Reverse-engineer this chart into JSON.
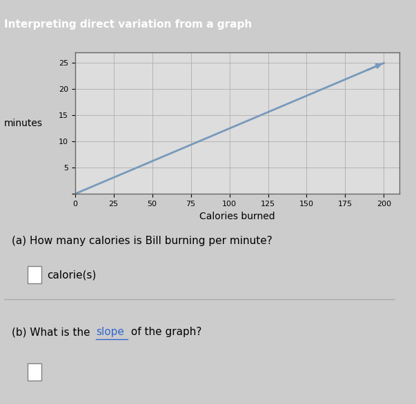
{
  "title": "",
  "xlabel": "Calories burned",
  "ylabel": "minutes",
  "xlim": [
    0,
    210
  ],
  "ylim": [
    0,
    27
  ],
  "xticks": [
    0,
    25,
    50,
    75,
    100,
    125,
    150,
    175,
    200
  ],
  "yticks": [
    0,
    5,
    10,
    15,
    20,
    25
  ],
  "line_x": [
    0,
    200
  ],
  "line_y": [
    0,
    25
  ],
  "line_color": "#7799bb",
  "line_width": 2.0,
  "background_color": "#cccccc",
  "plot_bg_color": "#dddddd",
  "grid_color": "#aaaaaa",
  "question_a": "(a) How many calories is Bill burning per minute?",
  "answer_a_label": "calorie(s)",
  "question_b_part1": "(b) What is the ",
  "question_b_slope": "slope",
  "question_b_part2": " of the graph?",
  "slope_color": "#3366cc",
  "box_bg": "#eeeeee",
  "header_text": "Interpreting direct variation from a graph",
  "header_bg": "#336688"
}
